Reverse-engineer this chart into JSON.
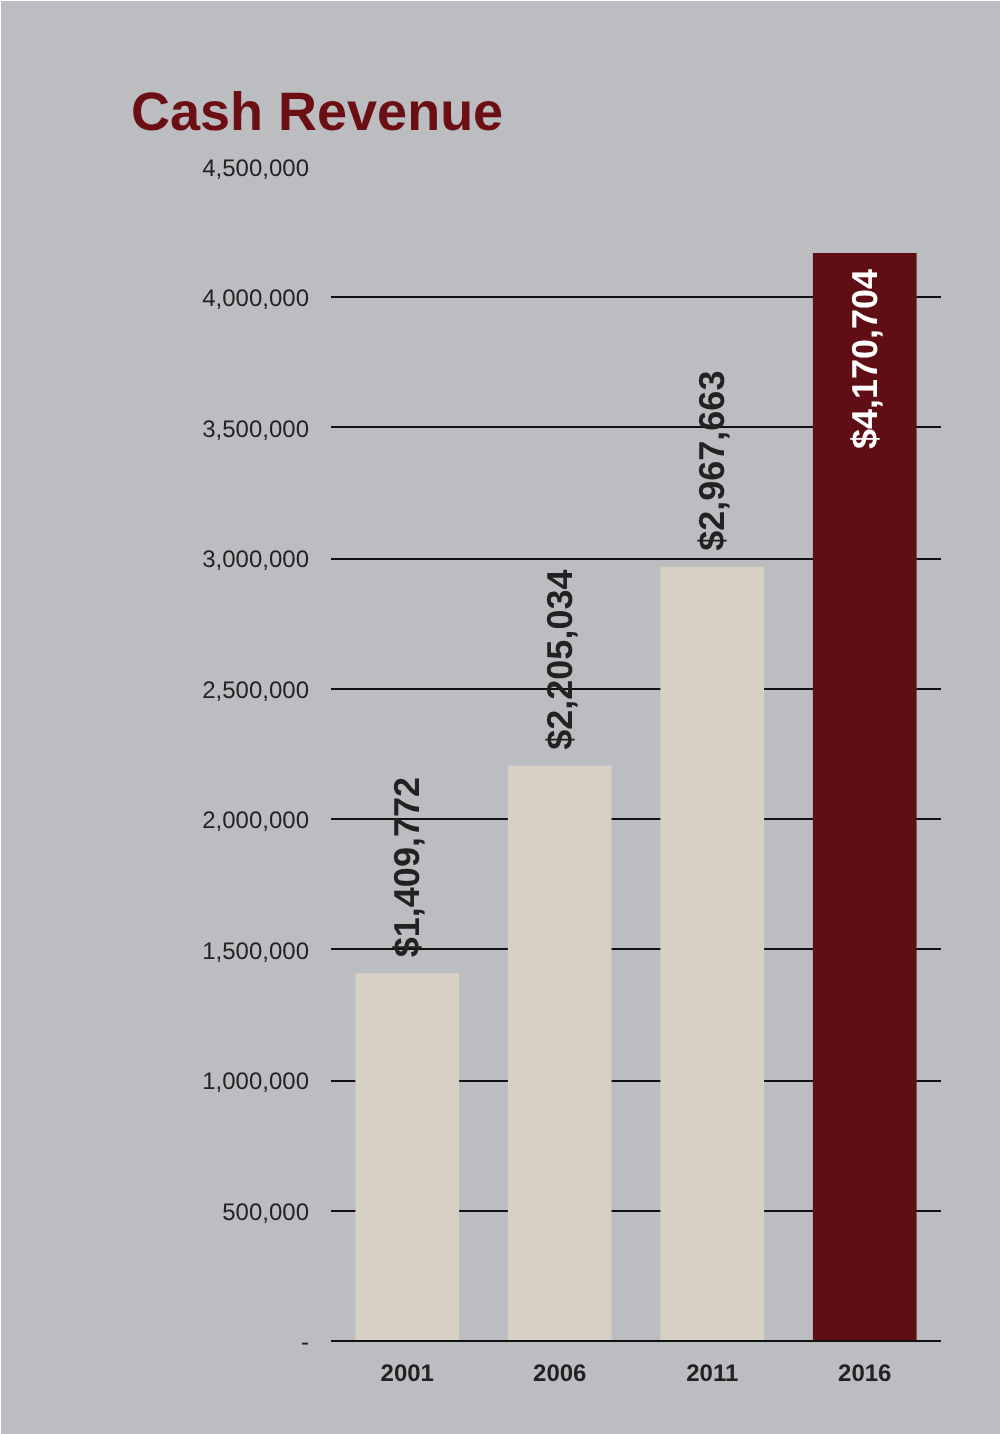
{
  "chart_data": {
    "type": "bar",
    "title": "Cash Revenue",
    "categories": [
      "2001",
      "2006",
      "2011",
      "2016"
    ],
    "values": [
      1409772,
      2205034,
      2967663,
      4170704
    ],
    "colors": [
      "#d6d1c4",
      "#d6d1c4",
      "#d6d1c4",
      "#5e0e14"
    ],
    "value_labels": [
      "$1,409,772",
      "$2,205,034",
      "$2,967,663",
      "$4,170,704"
    ],
    "ylim": [
      0,
      4500000
    ],
    "yticks": [
      {
        "value": 0,
        "label": "-"
      },
      {
        "value": 500000,
        "label": "500,000"
      },
      {
        "value": 1000000,
        "label": "1,000,000"
      },
      {
        "value": 1500000,
        "label": "1,500,000"
      },
      {
        "value": 2000000,
        "label": "2,000,000"
      },
      {
        "value": 2500000,
        "label": "2,500,000"
      },
      {
        "value": 3000000,
        "label": "3,000,000"
      },
      {
        "value": 3500000,
        "label": "3,500,000"
      },
      {
        "value": 4000000,
        "label": "4,000,000"
      },
      {
        "value": 4500000,
        "label": "4,500,000"
      }
    ],
    "grid": "y"
  }
}
